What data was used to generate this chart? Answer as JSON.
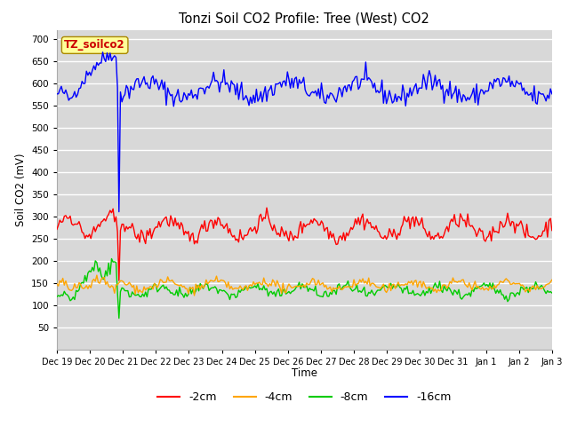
{
  "title": "Tonzi Soil CO2 Profile: Tree (West) CO2",
  "ylabel": "Soil CO2 (mV)",
  "xlabel": "Time",
  "ylim": [
    0,
    720
  ],
  "yticks": [
    50,
    100,
    150,
    200,
    250,
    300,
    350,
    400,
    450,
    500,
    550,
    600,
    650,
    700
  ],
  "legend_labels": [
    "-2cm",
    "-4cm",
    "-8cm",
    "-16cm"
  ],
  "legend_colors": [
    "#ff0000",
    "#ffa500",
    "#00cc00",
    "#0000ff"
  ],
  "watermark_text": "TZ_soilco2",
  "watermark_bg": "#ffff99",
  "watermark_fg": "#cc0000",
  "plot_bg": "#d8d8d8",
  "n_points": 336,
  "seed": 42,
  "x_tick_labels": [
    "Dec 19",
    "Dec 20",
    "Dec 21",
    "Dec 22",
    "Dec 23",
    "Dec 24",
    "Dec 25",
    "Dec 26",
    "Dec 27",
    "Dec 28",
    "Dec 29",
    "Dec 30",
    "Dec 31",
    "Jan 1",
    "Jan 2",
    "Jan 3"
  ],
  "spike_index": 42,
  "spike_value_blue": 310,
  "spike_value_red": 155,
  "spike_value_green": 70
}
